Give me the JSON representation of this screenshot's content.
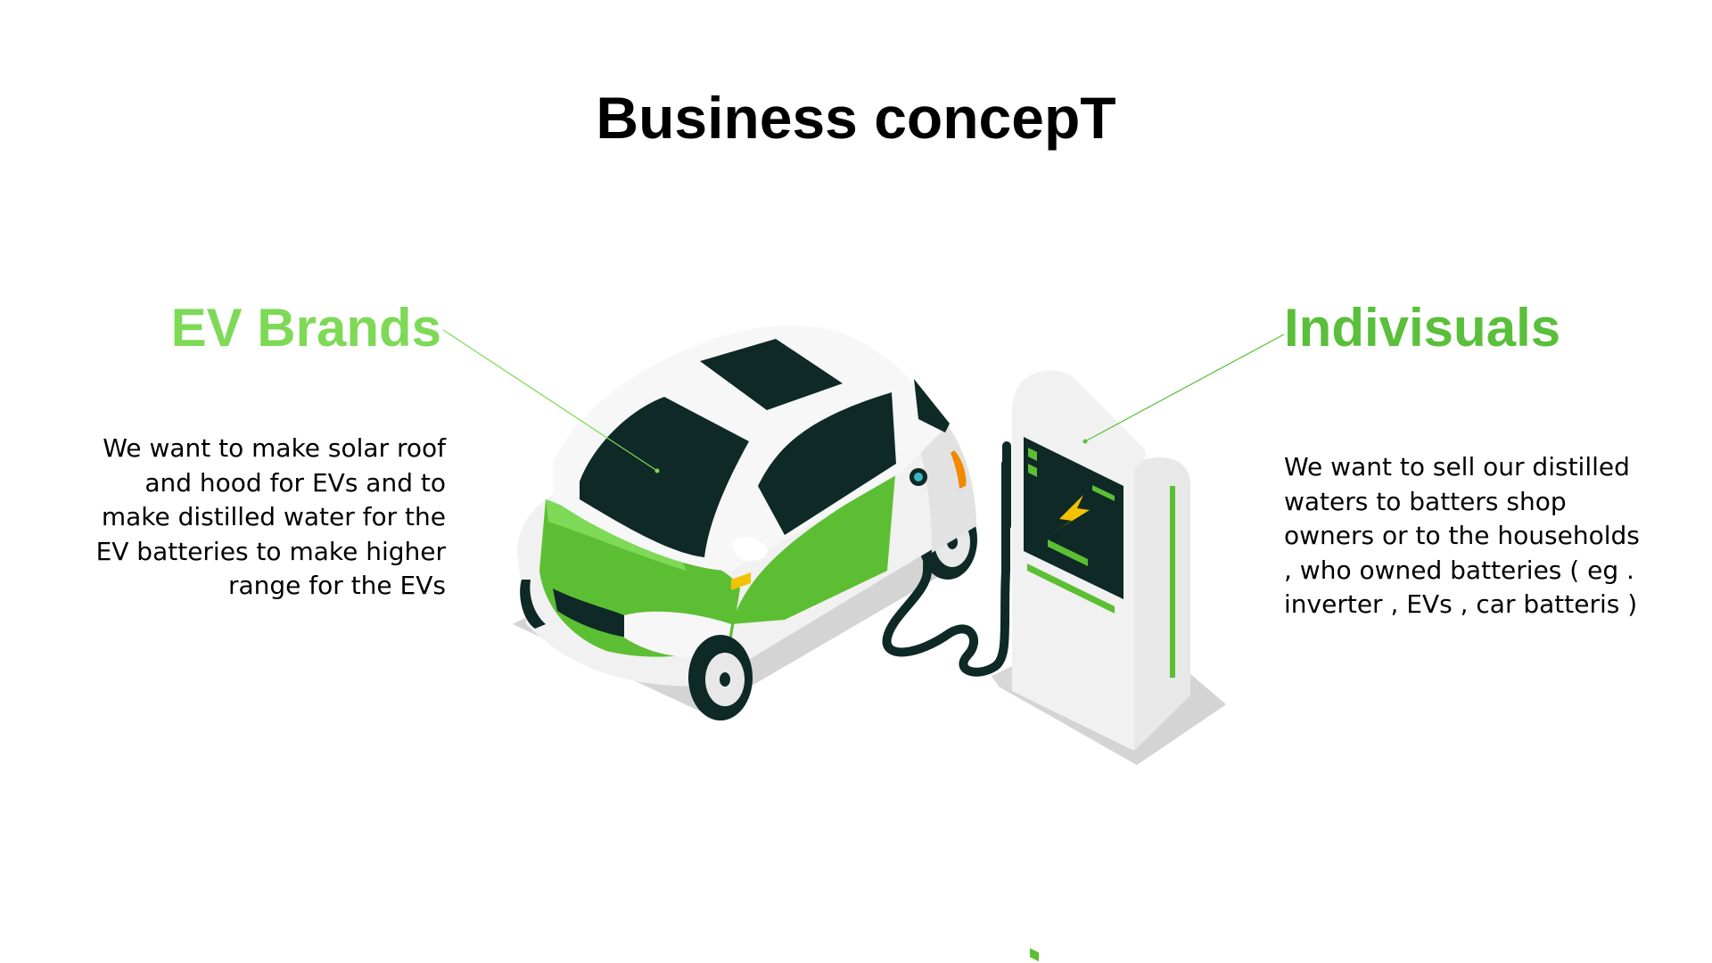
{
  "slide": {
    "title": "Business concepT",
    "left": {
      "heading": "EV Brands",
      "body": "We want to make solar roof and hood for EVs and to make distilled water for the EV batteries to make higher range for the EVs"
    },
    "right": {
      "heading": "Indivisuals",
      "body": "We want to sell our distilled waters to batters shop owners or to the households , who owned batteries ( eg . inverter , EVs , car batteris )"
    },
    "colors": {
      "left_heading": "#7ed957",
      "right_heading": "#5abf3a",
      "car_green": "#5cbf33",
      "dark": "#0e2926",
      "light_gray": "#f0f0f0",
      "shadow": "#d4d4d4",
      "accent_yellow": "#f2c200",
      "accent_orange": "#f08a00"
    },
    "illustration": {
      "car_icon": "electric-car-icon",
      "charger_icon": "charging-station-icon",
      "bolt_icon": "lightning-bolt-icon"
    }
  }
}
